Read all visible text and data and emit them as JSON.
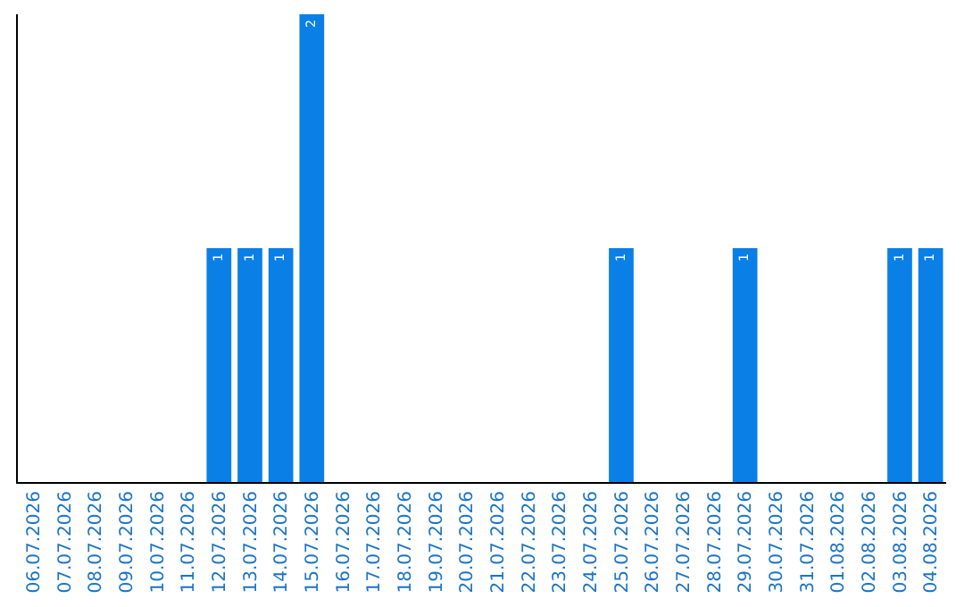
{
  "chart_data": {
    "type": "bar",
    "categories": [
      "06.07.2026",
      "07.07.2026",
      "08.07.2026",
      "09.07.2026",
      "10.07.2026",
      "11.07.2026",
      "12.07.2026",
      "13.07.2026",
      "14.07.2026",
      "15.07.2026",
      "16.07.2026",
      "17.07.2026",
      "18.07.2026",
      "19.07.2026",
      "20.07.2026",
      "21.07.2026",
      "22.07.2026",
      "23.07.2026",
      "24.07.2026",
      "25.07.2026",
      "26.07.2026",
      "27.07.2026",
      "28.07.2026",
      "29.07.2026",
      "30.07.2026",
      "31.07.2026",
      "01.08.2026",
      "02.08.2026",
      "03.08.2026",
      "04.08.2026"
    ],
    "values": [
      0,
      0,
      0,
      0,
      0,
      0,
      1,
      1,
      1,
      2,
      0,
      0,
      0,
      0,
      0,
      0,
      0,
      0,
      0,
      1,
      0,
      0,
      0,
      1,
      0,
      0,
      0,
      0,
      1,
      1
    ],
    "value_labels": [
      null,
      null,
      null,
      null,
      null,
      null,
      "1",
      "1",
      "1",
      "2",
      null,
      null,
      null,
      null,
      null,
      null,
      null,
      null,
      null,
      "1",
      null,
      null,
      null,
      "1",
      null,
      null,
      null,
      null,
      "1",
      "1"
    ],
    "color": "#0a7fe6",
    "ylim": [
      0,
      2
    ],
    "tick_labels": "x",
    "grid": false
  }
}
